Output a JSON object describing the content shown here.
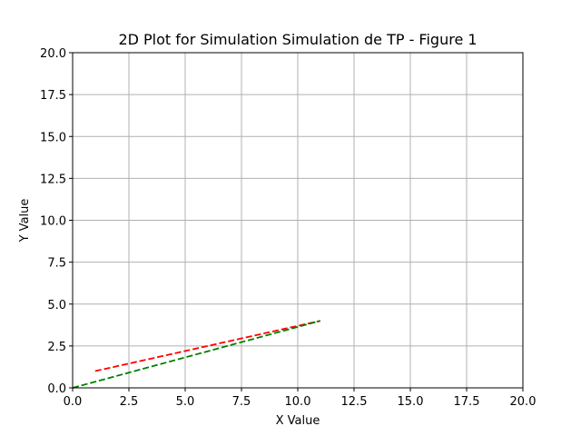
{
  "chart_data": {
    "type": "line",
    "title": "2D Plot for Simulation Simulation de TP - Figure 1",
    "xlabel": "X Value",
    "ylabel": "Y Value",
    "xlim": [
      0,
      20
    ],
    "ylim": [
      0,
      20
    ],
    "xticks": [
      0,
      2.5,
      5,
      7.5,
      10,
      12.5,
      15,
      17.5,
      20
    ],
    "yticks": [
      0,
      2.5,
      5,
      7.5,
      10,
      12.5,
      15,
      17.5,
      20
    ],
    "xtick_labels": [
      "0.0",
      "2.5",
      "5.0",
      "7.5",
      "10.0",
      "12.5",
      "15.0",
      "17.5",
      "20.0"
    ],
    "ytick_labels": [
      "0.0",
      "2.5",
      "5.0",
      "7.5",
      "10.0",
      "12.5",
      "15.0",
      "17.5",
      "20.0"
    ],
    "grid": true,
    "series": [
      {
        "color": "#ff0000",
        "linestyle": "dashed",
        "x": [
          1,
          11
        ],
        "y": [
          1,
          4
        ]
      },
      {
        "color": "#008000",
        "linestyle": "dashed",
        "x": [
          0,
          11
        ],
        "y": [
          0,
          4
        ]
      }
    ]
  }
}
